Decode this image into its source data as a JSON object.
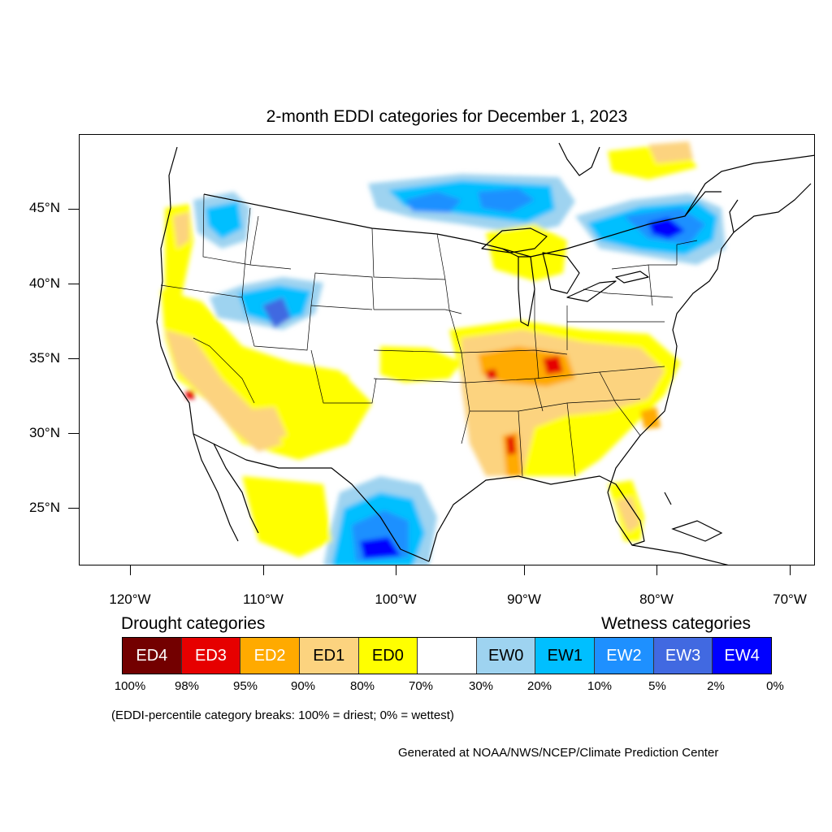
{
  "title": "2-month EDDI categories for December 1, 2023",
  "axes": {
    "lat_labels": [
      "45°N",
      "40°N",
      "35°N",
      "30°N",
      "25°N"
    ],
    "lon_labels": [
      "120°W",
      "110°W",
      "100°W",
      "90°W",
      "80°W",
      "70°W"
    ]
  },
  "legend": {
    "drought_heading": "Drought categories",
    "wetness_heading": "Wetness categories",
    "categories": [
      {
        "label": "ED4",
        "color": "#730000",
        "text_color": "#ffffff"
      },
      {
        "label": "ED3",
        "color": "#e60000",
        "text_color": "#ffffff"
      },
      {
        "label": "ED2",
        "color": "#ffaa00",
        "text_color": "#ffffff"
      },
      {
        "label": "ED1",
        "color": "#fcd37f",
        "text_color": "#000000"
      },
      {
        "label": "ED0",
        "color": "#ffff00",
        "text_color": "#000000"
      },
      {
        "label": "",
        "color": "#ffffff",
        "text_color": "#000000"
      },
      {
        "label": "EW0",
        "color": "#9ed3f0",
        "text_color": "#000000"
      },
      {
        "label": "EW1",
        "color": "#00bfff",
        "text_color": "#000000"
      },
      {
        "label": "EW2",
        "color": "#1e90ff",
        "text_color": "#ffffff"
      },
      {
        "label": "EW3",
        "color": "#4169e1",
        "text_color": "#ffffff"
      },
      {
        "label": "EW4",
        "color": "#0000ff",
        "text_color": "#ffffff"
      }
    ],
    "percentile_breaks": [
      "100%",
      "98%",
      "95%",
      "90%",
      "80%",
      "70%",
      "30%",
      "20%",
      "10%",
      "5%",
      "2%",
      "0%"
    ]
  },
  "note": "(EDDI-percentile category breaks: 100% = driest; 0% = wettest)",
  "credit": "Generated at NOAA/NWS/NCEP/Climate Prediction Center"
}
